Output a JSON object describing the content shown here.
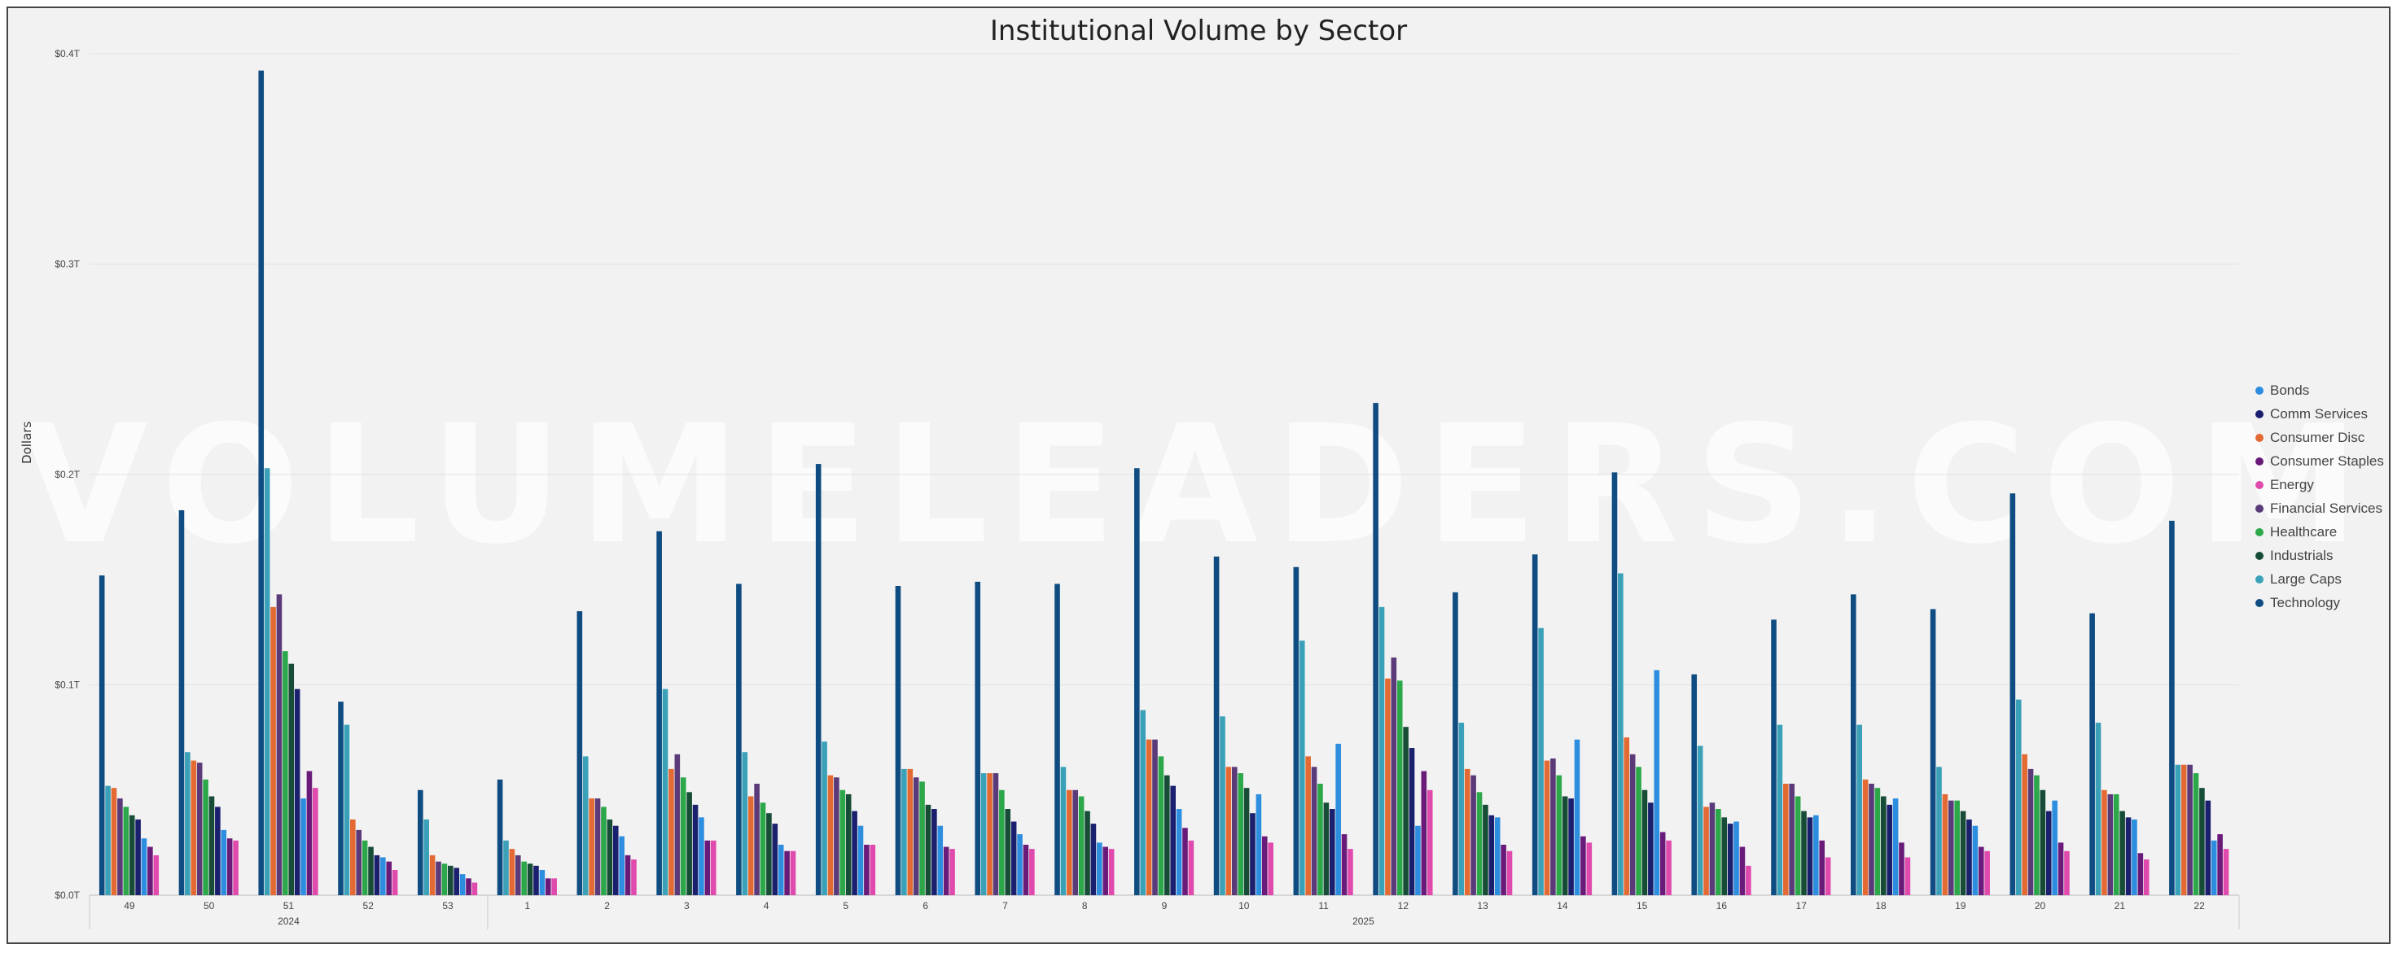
{
  "chart_data": {
    "type": "bar",
    "title": "Institutional Volume by Sector",
    "xlabel": "",
    "ylabel": "Dollars",
    "ylim": [
      0,
      0.4
    ],
    "y_unit": "T",
    "y_ticks": [
      "$0.0T",
      "$0.1T",
      "$0.2T",
      "$0.3T",
      "$0.4T"
    ],
    "grid": true,
    "legend_position": "right",
    "categories": [
      "49",
      "50",
      "51",
      "52",
      "53",
      "1",
      "2",
      "3",
      "4",
      "5",
      "6",
      "7",
      "8",
      "9",
      "10",
      "11",
      "12",
      "13",
      "14",
      "15",
      "16",
      "17",
      "18",
      "19",
      "20",
      "21",
      "22"
    ],
    "groups": [
      {
        "label": "2024",
        "count": 5
      },
      {
        "label": "2025",
        "count": 22
      }
    ],
    "series": [
      {
        "name": "Technology",
        "color": "#0f4c81",
        "values": [
          0.152,
          0.183,
          0.392,
          0.092,
          0.05,
          0.055,
          0.135,
          0.173,
          0.148,
          0.205,
          0.147,
          0.149,
          0.148,
          0.203,
          0.161,
          0.156,
          0.234,
          0.144,
          0.162,
          0.201,
          0.105,
          0.131,
          0.143,
          0.136,
          0.191,
          0.134,
          0.178
        ]
      },
      {
        "name": "Large Caps",
        "color": "#3aa1b8",
        "values": [
          0.052,
          0.068,
          0.203,
          0.081,
          0.036,
          0.026,
          0.066,
          0.098,
          0.068,
          0.073,
          0.06,
          0.058,
          0.061,
          0.088,
          0.085,
          0.121,
          0.137,
          0.082,
          0.127,
          0.153,
          0.071,
          0.081,
          0.081,
          0.061,
          0.093,
          0.082,
          0.062
        ]
      },
      {
        "name": "Consumer Disc",
        "color": "#e46a33",
        "values": [
          0.051,
          0.064,
          0.137,
          0.036,
          0.019,
          0.022,
          0.046,
          0.06,
          0.047,
          0.057,
          0.06,
          0.058,
          0.05,
          0.074,
          0.061,
          0.066,
          0.103,
          0.06,
          0.064,
          0.075,
          0.042,
          0.053,
          0.055,
          0.048,
          0.067,
          0.05,
          0.062
        ]
      },
      {
        "name": "Financial Services",
        "color": "#5a3a78",
        "values": [
          0.046,
          0.063,
          0.143,
          0.031,
          0.016,
          0.019,
          0.046,
          0.067,
          0.053,
          0.056,
          0.056,
          0.058,
          0.05,
          0.074,
          0.061,
          0.061,
          0.113,
          0.057,
          0.065,
          0.067,
          0.044,
          0.053,
          0.053,
          0.045,
          0.06,
          0.048,
          0.062
        ]
      },
      {
        "name": "Healthcare",
        "color": "#2ca74a",
        "values": [
          0.042,
          0.055,
          0.116,
          0.026,
          0.015,
          0.016,
          0.042,
          0.056,
          0.044,
          0.05,
          0.054,
          0.05,
          0.047,
          0.066,
          0.058,
          0.053,
          0.102,
          0.049,
          0.057,
          0.061,
          0.041,
          0.047,
          0.051,
          0.045,
          0.057,
          0.048,
          0.058
        ]
      },
      {
        "name": "Industrials",
        "color": "#174d36",
        "values": [
          0.038,
          0.047,
          0.11,
          0.023,
          0.014,
          0.015,
          0.036,
          0.049,
          0.039,
          0.048,
          0.043,
          0.041,
          0.04,
          0.057,
          0.051,
          0.044,
          0.08,
          0.043,
          0.047,
          0.05,
          0.037,
          0.04,
          0.047,
          0.04,
          0.05,
          0.04,
          0.051
        ]
      },
      {
        "name": "Comm Services",
        "color": "#1a1f6e",
        "values": [
          0.036,
          0.042,
          0.098,
          0.019,
          0.013,
          0.014,
          0.033,
          0.043,
          0.034,
          0.04,
          0.041,
          0.035,
          0.034,
          0.052,
          0.039,
          0.041,
          0.07,
          0.038,
          0.046,
          0.044,
          0.034,
          0.037,
          0.043,
          0.036,
          0.04,
          0.037,
          0.045
        ]
      },
      {
        "name": "Bonds",
        "color": "#2d8ee0",
        "values": [
          0.027,
          0.031,
          0.046,
          0.018,
          0.01,
          0.012,
          0.028,
          0.037,
          0.024,
          0.033,
          0.033,
          0.029,
          0.025,
          0.041,
          0.048,
          0.072,
          0.033,
          0.037,
          0.074,
          0.107,
          0.035,
          0.038,
          0.046,
          0.033,
          0.045,
          0.036,
          0.026
        ]
      },
      {
        "name": "Consumer Staples",
        "color": "#6a1b7a",
        "values": [
          0.023,
          0.027,
          0.059,
          0.016,
          0.008,
          0.008,
          0.019,
          0.026,
          0.021,
          0.024,
          0.023,
          0.024,
          0.023,
          0.032,
          0.028,
          0.029,
          0.059,
          0.024,
          0.028,
          0.03,
          0.023,
          0.026,
          0.025,
          0.023,
          0.025,
          0.02,
          0.029
        ]
      },
      {
        "name": "Energy",
        "color": "#e04aad",
        "values": [
          0.019,
          0.026,
          0.051,
          0.012,
          0.006,
          0.008,
          0.017,
          0.026,
          0.021,
          0.024,
          0.022,
          0.022,
          0.022,
          0.026,
          0.025,
          0.022,
          0.05,
          0.021,
          0.025,
          0.026,
          0.014,
          0.018,
          0.018,
          0.021,
          0.021,
          0.017,
          0.022
        ]
      }
    ]
  },
  "legend_items": [
    {
      "name": "Bonds",
      "color": "#2d8ee0"
    },
    {
      "name": "Comm Services",
      "color": "#1a1f6e"
    },
    {
      "name": "Consumer Disc",
      "color": "#e46a33"
    },
    {
      "name": "Consumer Staples",
      "color": "#6a1b7a"
    },
    {
      "name": "Energy",
      "color": "#e04aad"
    },
    {
      "name": "Financial Services",
      "color": "#5a3a78"
    },
    {
      "name": "Healthcare",
      "color": "#2ca74a"
    },
    {
      "name": "Industrials",
      "color": "#174d36"
    },
    {
      "name": "Large Caps",
      "color": "#3aa1b8"
    },
    {
      "name": "Technology",
      "color": "#0f4c81"
    }
  ],
  "watermark_logo": "VOLUMELEADERS.COM"
}
